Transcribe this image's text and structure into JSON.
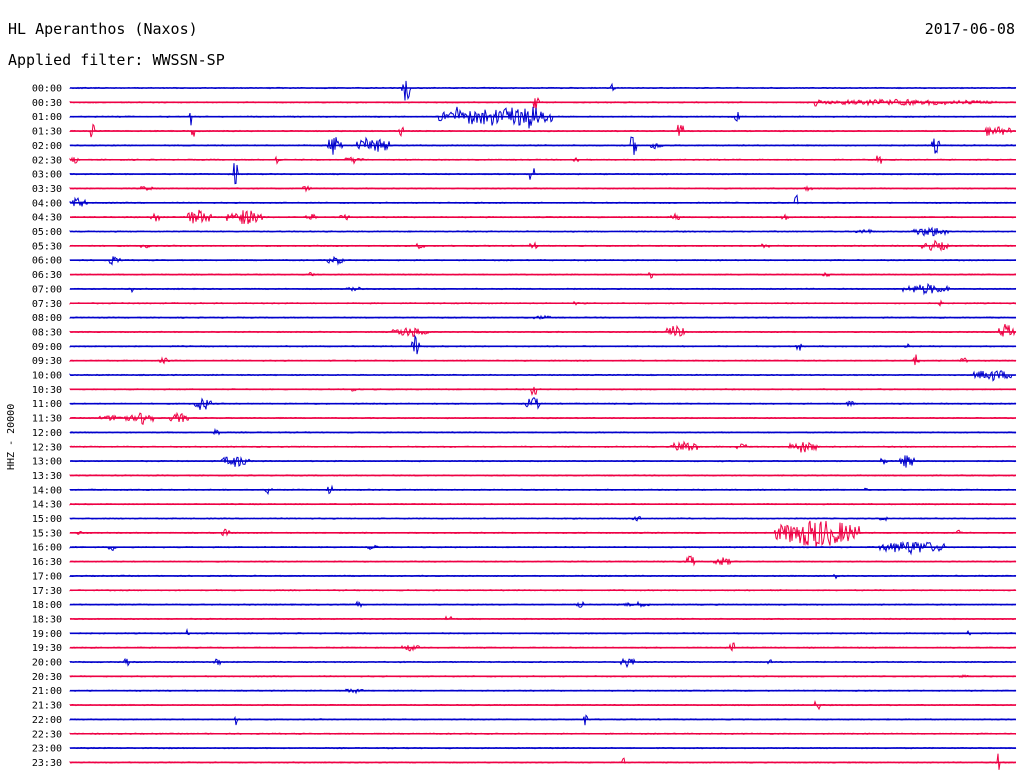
{
  "header": {
    "station": "HL Aperanthos (Naxos)",
    "date": "2017-06-08",
    "filter": "Applied filter: WWSSN-SP"
  },
  "chart_data": {
    "type": "line",
    "title": "HL Aperanthos (Naxos)",
    "date": "2017-06-08",
    "ylabel": "HHZ - 20000",
    "trace_colors": [
      "#0000cc",
      "#ee0044"
    ],
    "rows": [
      {
        "label": "00:00",
        "events": [
          [
            35.5,
            0.5,
            1.6
          ],
          [
            57.4,
            0.3,
            0.6
          ]
        ]
      },
      {
        "label": "00:30",
        "events": [
          [
            49.3,
            0.4,
            1.0
          ],
          [
            79.0,
            0.5,
            0.6
          ],
          [
            88.0,
            10.0,
            0.35
          ]
        ]
      },
      {
        "label": "01:00",
        "events": [
          [
            12.8,
            0.2,
            1.9
          ],
          [
            40.8,
            0.4,
            1.4
          ],
          [
            45.0,
            6.0,
            1.2
          ],
          [
            48.5,
            1.5,
            1.4
          ],
          [
            70.5,
            0.3,
            0.7
          ]
        ]
      },
      {
        "label": "01:30",
        "events": [
          [
            2.5,
            0.3,
            1.4
          ],
          [
            13.0,
            0.3,
            0.8
          ],
          [
            35.0,
            0.3,
            0.8
          ],
          [
            64.5,
            0.3,
            1.5
          ],
          [
            97.0,
            0.3,
            1.2
          ],
          [
            98.5,
            1.0,
            0.6
          ]
        ]
      },
      {
        "label": "02:00",
        "events": [
          [
            28.0,
            0.8,
            1.3
          ],
          [
            31.8,
            1.5,
            1.0
          ],
          [
            33.5,
            0.4,
            0.8
          ],
          [
            59.5,
            0.4,
            1.3
          ],
          [
            62.0,
            0.6,
            0.5
          ],
          [
            91.5,
            0.4,
            1.0
          ]
        ]
      },
      {
        "label": "02:30",
        "events": [
          [
            0.5,
            0.4,
            0.5
          ],
          [
            22.0,
            0.3,
            0.8
          ],
          [
            30.0,
            1.0,
            0.4
          ],
          [
            53.5,
            0.3,
            0.6
          ],
          [
            85.5,
            0.3,
            0.9
          ]
        ]
      },
      {
        "label": "03:00",
        "events": [
          [
            17.5,
            0.3,
            1.8
          ],
          [
            48.8,
            0.3,
            1.8
          ]
        ]
      },
      {
        "label": "03:30",
        "events": [
          [
            8.0,
            0.8,
            0.3
          ],
          [
            25.0,
            0.6,
            0.3
          ],
          [
            78.0,
            0.5,
            0.3
          ]
        ]
      },
      {
        "label": "04:00",
        "events": [
          [
            0.8,
            1.0,
            0.6
          ],
          [
            76.8,
            0.2,
            1.7
          ]
        ]
      },
      {
        "label": "04:30",
        "events": [
          [
            9.0,
            0.5,
            0.6
          ],
          [
            13.5,
            1.5,
            0.9
          ],
          [
            18.5,
            2.0,
            0.9
          ],
          [
            25.5,
            0.6,
            0.4
          ],
          [
            29.0,
            0.5,
            0.5
          ],
          [
            64.0,
            0.5,
            0.5
          ],
          [
            75.5,
            0.5,
            0.4
          ]
        ]
      },
      {
        "label": "05:00",
        "events": [
          [
            91.0,
            2.0,
            0.6
          ],
          [
            84.0,
            1.0,
            0.3
          ]
        ]
      },
      {
        "label": "05:30",
        "events": [
          [
            8.0,
            0.5,
            0.4
          ],
          [
            37.0,
            0.5,
            0.4
          ],
          [
            49.0,
            0.4,
            0.5
          ],
          [
            73.5,
            0.4,
            0.4
          ],
          [
            91.5,
            1.5,
            0.6
          ]
        ]
      },
      {
        "label": "06:00",
        "events": [
          [
            4.5,
            0.8,
            0.5
          ],
          [
            28.0,
            1.0,
            0.5
          ]
        ]
      },
      {
        "label": "06:30",
        "events": [
          [
            25.5,
            0.5,
            0.3
          ],
          [
            61.5,
            0.3,
            0.5
          ],
          [
            80.0,
            0.5,
            0.3
          ]
        ]
      },
      {
        "label": "07:00",
        "events": [
          [
            6.5,
            0.3,
            0.4
          ],
          [
            30.0,
            1.0,
            0.3
          ],
          [
            90.5,
            2.5,
            0.6
          ]
        ]
      },
      {
        "label": "07:30",
        "events": [
          [
            53.5,
            0.3,
            0.3
          ],
          [
            92.0,
            0.3,
            0.3
          ]
        ]
      },
      {
        "label": "08:00",
        "events": [
          [
            50.0,
            1.0,
            0.25
          ]
        ]
      },
      {
        "label": "08:30",
        "events": [
          [
            36.0,
            2.0,
            0.6
          ],
          [
            64.0,
            1.0,
            0.8
          ],
          [
            99.0,
            0.8,
            1.0
          ]
        ]
      },
      {
        "label": "09:00",
        "events": [
          [
            36.5,
            0.4,
            1.2
          ],
          [
            77.0,
            0.3,
            0.8
          ],
          [
            88.5,
            0.3,
            0.3
          ]
        ]
      },
      {
        "label": "09:30",
        "events": [
          [
            10.0,
            0.5,
            0.4
          ],
          [
            89.5,
            0.4,
            0.8
          ],
          [
            94.5,
            0.5,
            0.4
          ]
        ]
      },
      {
        "label": "10:00",
        "events": [
          [
            97.5,
            2.0,
            0.7
          ]
        ]
      },
      {
        "label": "10:30",
        "events": [
          [
            30.0,
            0.5,
            0.3
          ],
          [
            49.0,
            0.3,
            1.1
          ]
        ]
      },
      {
        "label": "11:00",
        "events": [
          [
            14.0,
            1.0,
            0.8
          ],
          [
            49.0,
            0.8,
            0.8
          ],
          [
            82.5,
            0.5,
            0.4
          ]
        ]
      },
      {
        "label": "11:30",
        "events": [
          [
            5.5,
            2.5,
            0.4
          ],
          [
            8.0,
            0.8,
            1.0
          ],
          [
            11.5,
            1.0,
            0.6
          ]
        ]
      },
      {
        "label": "12:00",
        "events": [
          [
            15.5,
            0.3,
            0.5
          ]
        ]
      },
      {
        "label": "12:30",
        "events": [
          [
            65.0,
            1.5,
            0.7
          ],
          [
            71.0,
            0.5,
            0.5
          ],
          [
            77.5,
            1.5,
            0.7
          ]
        ]
      },
      {
        "label": "13:00",
        "events": [
          [
            17.5,
            1.5,
            0.7
          ],
          [
            88.5,
            0.8,
            0.8
          ],
          [
            86.0,
            0.4,
            0.5
          ]
        ]
      },
      {
        "label": "13:30",
        "events": []
      },
      {
        "label": "14:00",
        "events": [
          [
            21.0,
            0.4,
            0.5
          ],
          [
            27.5,
            0.3,
            0.6
          ],
          [
            84.0,
            0.3,
            0.4
          ]
        ]
      },
      {
        "label": "14:30",
        "events": []
      },
      {
        "label": "15:00",
        "events": [
          [
            60.0,
            0.5,
            0.3
          ],
          [
            86.0,
            0.5,
            0.3
          ]
        ]
      },
      {
        "label": "15:30",
        "events": [
          [
            1.0,
            0.3,
            0.3
          ],
          [
            16.5,
            0.5,
            0.5
          ],
          [
            79.0,
            4.5,
            1.7
          ],
          [
            94.0,
            0.3,
            0.4
          ]
        ]
      },
      {
        "label": "16:00",
        "events": [
          [
            4.5,
            0.5,
            0.4
          ],
          [
            32.0,
            0.5,
            0.4
          ],
          [
            89.0,
            3.5,
            0.8
          ]
        ]
      },
      {
        "label": "16:30",
        "events": [
          [
            65.5,
            0.5,
            0.9
          ],
          [
            69.0,
            1.0,
            0.5
          ]
        ]
      },
      {
        "label": "17:00",
        "events": [
          [
            81.0,
            0.3,
            0.3
          ]
        ]
      },
      {
        "label": "17:30",
        "events": []
      },
      {
        "label": "18:00",
        "events": [
          [
            30.5,
            0.4,
            0.4
          ],
          [
            54.0,
            0.5,
            0.5
          ],
          [
            60.0,
            1.5,
            0.3
          ]
        ]
      },
      {
        "label": "18:30",
        "events": [
          [
            40.0,
            0.3,
            0.5
          ]
        ]
      },
      {
        "label": "19:00",
        "events": [
          [
            12.5,
            0.2,
            0.6
          ],
          [
            95.0,
            0.2,
            0.6
          ]
        ]
      },
      {
        "label": "19:30",
        "events": [
          [
            36.0,
            1.0,
            0.4
          ],
          [
            70.0,
            0.3,
            1.1
          ]
        ]
      },
      {
        "label": "20:00",
        "events": [
          [
            6.0,
            0.3,
            0.5
          ],
          [
            15.5,
            0.4,
            0.5
          ],
          [
            59.0,
            0.8,
            0.6
          ],
          [
            74.0,
            0.3,
            0.5
          ]
        ]
      },
      {
        "label": "20:30",
        "events": [
          [
            94.5,
            0.5,
            0.3
          ]
        ]
      },
      {
        "label": "21:00",
        "events": [
          [
            30.0,
            1.0,
            0.3
          ]
        ]
      },
      {
        "label": "21:30",
        "events": [
          [
            79.0,
            0.3,
            0.8
          ]
        ]
      },
      {
        "label": "22:00",
        "events": [
          [
            17.5,
            0.2,
            1.1
          ],
          [
            54.5,
            0.2,
            1.0
          ]
        ]
      },
      {
        "label": "22:30",
        "events": []
      },
      {
        "label": "23:00",
        "events": []
      },
      {
        "label": "23:30",
        "events": [
          [
            98.0,
            0.3,
            1.4
          ],
          [
            58.5,
            0.2,
            0.6
          ]
        ]
      }
    ]
  }
}
